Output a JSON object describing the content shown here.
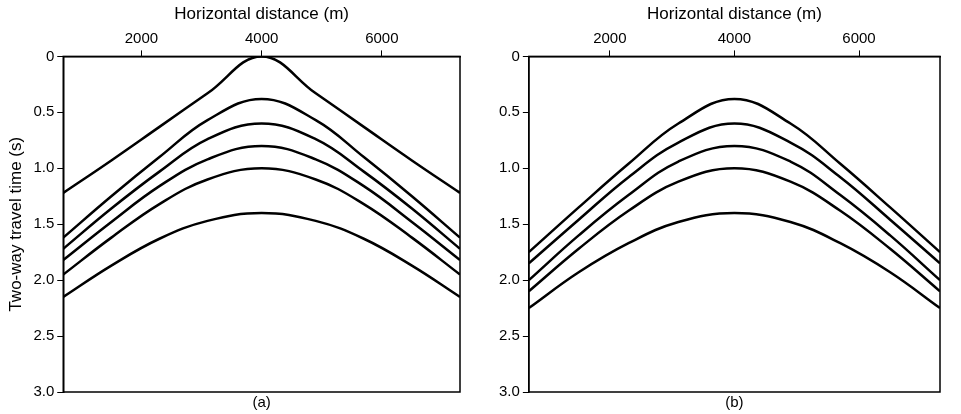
{
  "chart_data": [
    {
      "type": "line",
      "panel_label": "(a)",
      "x_label": "Horizontal distance (m)",
      "y_label": "Two-way travel time (s)",
      "x": [
        700,
        1500,
        2300,
        3100,
        4000,
        4900,
        5700,
        6500,
        7300
      ],
      "series": [
        {
          "color": "#000000",
          "values": [
            1.22,
            0.93,
            0.63,
            0.33,
            0,
            0.33,
            0.63,
            0.93,
            1.22
          ]
        },
        {
          "color": "#000000",
          "values": [
            1.62,
            1.25,
            0.9,
            0.57,
            0.38,
            0.57,
            0.9,
            1.25,
            1.62
          ]
        },
        {
          "color": "#000000",
          "values": [
            1.72,
            1.36,
            1.03,
            0.74,
            0.6,
            0.74,
            1.03,
            1.36,
            1.72
          ]
        },
        {
          "color": "#000000",
          "values": [
            1.82,
            1.48,
            1.16,
            0.92,
            0.8,
            0.92,
            1.16,
            1.48,
            1.82
          ]
        },
        {
          "color": "#000000",
          "values": [
            1.95,
            1.62,
            1.32,
            1.1,
            1.0,
            1.1,
            1.32,
            1.62,
            1.95
          ]
        },
        {
          "color": "#000000",
          "values": [
            2.15,
            1.87,
            1.63,
            1.47,
            1.4,
            1.47,
            1.63,
            1.87,
            2.15
          ]
        }
      ],
      "xlim": [
        700,
        7300
      ],
      "xticks": [
        2000,
        4000,
        6000
      ],
      "ylim": [
        0,
        3
      ],
      "yticks": [
        0,
        0.5,
        {
          "value": 1,
          "label": "1.0"
        },
        1.5,
        {
          "value": 2,
          "label": "2.0"
        },
        2.5,
        {
          "value": 3,
          "label": "3.0"
        }
      ],
      "grid": false
    },
    {
      "type": "line",
      "panel_label": "(b)",
      "x_label": "Horizontal distance (m)",
      "x": [
        700,
        1500,
        2300,
        3100,
        4000,
        4900,
        5700,
        6500,
        7300
      ],
      "series": [
        {
          "color": "#000000",
          "values": [
            1.75,
            1.35,
            0.96,
            0.6,
            0.38,
            0.6,
            0.96,
            1.35,
            1.75
          ]
        },
        {
          "color": "#000000",
          "values": [
            1.85,
            1.46,
            1.08,
            0.77,
            0.6,
            0.77,
            1.08,
            1.46,
            1.85
          ]
        },
        {
          "color": "#000000",
          "values": [
            2.0,
            1.6,
            1.24,
            0.94,
            0.8,
            0.94,
            1.24,
            1.6,
            2.0
          ]
        },
        {
          "color": "#000000",
          "values": [
            2.1,
            1.72,
            1.38,
            1.12,
            1.0,
            1.12,
            1.38,
            1.72,
            2.1
          ]
        },
        {
          "color": "#000000",
          "values": [
            2.25,
            1.93,
            1.67,
            1.48,
            1.4,
            1.48,
            1.67,
            1.93,
            2.25
          ]
        }
      ],
      "xlim": [
        700,
        7300
      ],
      "xticks": [
        2000,
        4000,
        6000
      ],
      "ylim": [
        0,
        3
      ],
      "yticks": [
        0,
        0.5,
        {
          "value": 1,
          "label": "1.0"
        },
        1.5,
        {
          "value": 2,
          "label": "2.0"
        },
        2.5,
        {
          "value": 3,
          "label": "3.0"
        }
      ],
      "grid": false
    }
  ]
}
